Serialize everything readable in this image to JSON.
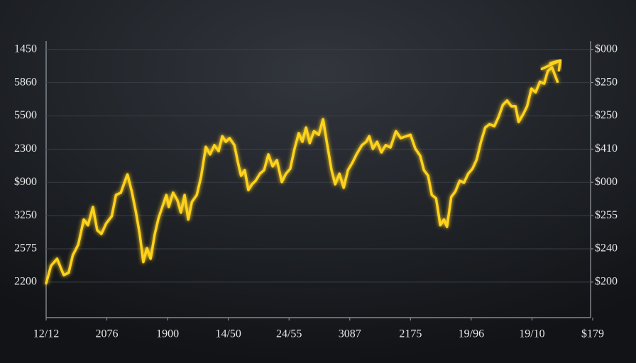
{
  "chart_data": {
    "type": "line",
    "color": "#ffd21e",
    "grid": true,
    "xlim": [
      0,
      9
    ],
    "xticks": [
      {
        "value": 0,
        "label": "12/12"
      },
      {
        "value": 1,
        "label": "2076"
      },
      {
        "value": 2,
        "label": "1900"
      },
      {
        "value": 3,
        "label": "14/50"
      },
      {
        "value": 4,
        "label": "24/55"
      },
      {
        "value": 5,
        "label": "3087"
      },
      {
        "value": 6,
        "label": "2175"
      },
      {
        "value": 7,
        "label": "19/96"
      },
      {
        "value": 8,
        "label": "19/10"
      },
      {
        "value": 9,
        "label": "$179"
      }
    ],
    "ylim": [
      -1.07,
      7.25
    ],
    "yticks": [
      {
        "value": 7,
        "label": "1450"
      },
      {
        "value": 6,
        "label": "5860"
      },
      {
        "value": 5,
        "label": "5500"
      },
      {
        "value": 4,
        "label": "2300"
      },
      {
        "value": 3,
        "label": "$900"
      },
      {
        "value": 2,
        "label": "3250"
      },
      {
        "value": 1,
        "label": "2575"
      },
      {
        "value": 0,
        "label": "2200"
      }
    ],
    "y2lim": [
      -1.07,
      7.25
    ],
    "y2ticks": [
      {
        "value": 7,
        "label": "$000"
      },
      {
        "value": 6,
        "label": "$250"
      },
      {
        "value": 5,
        "label": "$250"
      },
      {
        "value": 4,
        "label": "$410"
      },
      {
        "value": 3,
        "label": "$000"
      },
      {
        "value": 2,
        "label": "$255"
      },
      {
        "value": 1,
        "label": "$240"
      },
      {
        "value": 0,
        "label": "$200"
      }
    ],
    "x": [
      0,
      0.08,
      0.18,
      0.29,
      0.37,
      0.44,
      0.53,
      0.62,
      0.69,
      0.77,
      0.84,
      0.91,
      0.99,
      1.08,
      1.15,
      1.23,
      1.3,
      1.34,
      1.41,
      1.48,
      1.54,
      1.6,
      1.66,
      1.72,
      1.79,
      1.85,
      1.92,
      1.98,
      2.02,
      2.09,
      2.16,
      2.22,
      2.28,
      2.34,
      2.4,
      2.48,
      2.55,
      2.63,
      2.7,
      2.77,
      2.84,
      2.9,
      2.96,
      3.02,
      3.1,
      3.16,
      3.21,
      3.27,
      3.33,
      3.39,
      3.45,
      3.52,
      3.59,
      3.66,
      3.73,
      3.8,
      3.88,
      3.95,
      4.02,
      4.09,
      4.16,
      4.22,
      4.28,
      4.34,
      4.41,
      4.49,
      4.56,
      4.63,
      4.7,
      4.76,
      4.83,
      4.9,
      4.97,
      5.04,
      5.11,
      5.2,
      5.27,
      5.32,
      5.38,
      5.45,
      5.52,
      5.59,
      5.67,
      5.76,
      5.84,
      5.93,
      6.0,
      6.08,
      6.16,
      6.22,
      6.29,
      6.35,
      6.42,
      6.49,
      6.55,
      6.6,
      6.67,
      6.74,
      6.81,
      6.88,
      6.95,
      7.02,
      7.09,
      7.16,
      7.23,
      7.3,
      7.38,
      7.45,
      7.52,
      7.59,
      7.66,
      7.73,
      7.78,
      7.85,
      7.92,
      7.99,
      8.06,
      8.13,
      8.2,
      8.26,
      8.33,
      8.42
    ],
    "values": [
      -0.04,
      0.49,
      0.7,
      0.21,
      0.28,
      0.81,
      1.13,
      1.88,
      1.71,
      2.26,
      1.56,
      1.45,
      1.77,
      1.98,
      2.62,
      2.69,
      3.05,
      3.24,
      2.73,
      2.09,
      1.45,
      0.6,
      1.02,
      0.7,
      1.45,
      1.92,
      2.3,
      2.62,
      2.26,
      2.69,
      2.47,
      2.09,
      2.62,
      1.88,
      2.41,
      2.62,
      3.16,
      4.07,
      3.84,
      4.12,
      3.94,
      4.39,
      4.22,
      4.33,
      4.12,
      3.58,
      3.2,
      3.37,
      2.77,
      2.94,
      3.05,
      3.26,
      3.37,
      3.84,
      3.48,
      3.67,
      3.01,
      3.26,
      3.41,
      4.01,
      4.48,
      4.22,
      4.65,
      4.18,
      4.54,
      4.43,
      4.9,
      4.12,
      3.37,
      2.94,
      3.26,
      2.84,
      3.37,
      3.58,
      3.84,
      4.12,
      4.22,
      4.39,
      4.01,
      4.22,
      3.9,
      4.12,
      4.05,
      4.54,
      4.33,
      4.39,
      4.43,
      4.01,
      3.8,
      3.37,
      3.2,
      2.62,
      2.52,
      1.71,
      1.88,
      1.66,
      2.56,
      2.73,
      3.05,
      2.99,
      3.26,
      3.41,
      3.69,
      4.22,
      4.65,
      4.75,
      4.69,
      4.97,
      5.33,
      5.46,
      5.29,
      5.29,
      4.82,
      5.03,
      5.29,
      5.82,
      5.71,
      6.03,
      5.97,
      6.35,
      6.46,
      6.03
    ]
  }
}
